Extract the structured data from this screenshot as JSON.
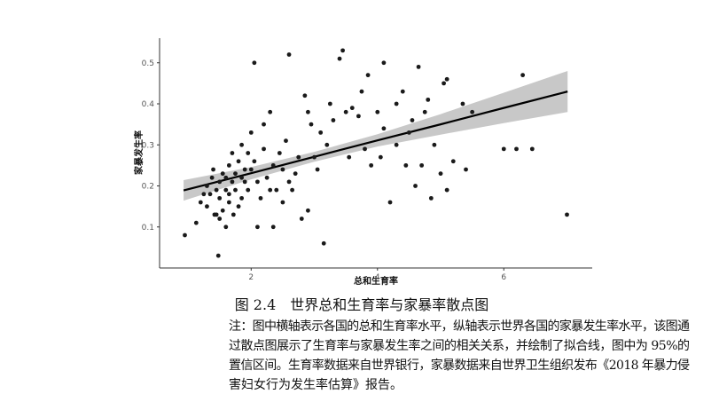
{
  "chart_data": {
    "type": "scatter",
    "xlabel": "总和生育率",
    "ylabel": "家暴发生率",
    "xlim": [
      0.55,
      7.4
    ],
    "ylim": [
      0,
      0.56
    ],
    "xticks": [
      2,
      4,
      6
    ],
    "yticks": [
      0.1,
      0.2,
      0.3,
      0.4,
      0.5
    ],
    "color": "#1a1a1a",
    "x": [
      0.95,
      1.13,
      1.2,
      1.25,
      1.3,
      1.3,
      1.35,
      1.38,
      1.4,
      1.42,
      1.45,
      1.45,
      1.5,
      1.5,
      1.5,
      1.55,
      1.55,
      1.48,
      1.6,
      1.6,
      1.6,
      1.65,
      1.65,
      1.65,
      1.7,
      1.7,
      1.72,
      1.75,
      1.75,
      1.8,
      1.8,
      1.85,
      1.85,
      1.85,
      1.9,
      1.9,
      1.95,
      1.95,
      2.0,
      2.0,
      2.05,
      2.05,
      2.1,
      2.15,
      2.1,
      2.2,
      2.2,
      2.25,
      2.3,
      2.3,
      2.35,
      2.35,
      2.4,
      2.45,
      2.5,
      2.5,
      2.55,
      2.6,
      2.6,
      2.65,
      2.7,
      2.75,
      2.8,
      2.85,
      2.9,
      2.9,
      2.95,
      3.0,
      3.05,
      3.1,
      3.15,
      3.2,
      3.25,
      3.3,
      3.4,
      3.45,
      3.5,
      3.55,
      3.6,
      3.7,
      3.75,
      3.8,
      3.85,
      3.9,
      4.0,
      4.05,
      4.1,
      4.1,
      4.2,
      4.3,
      4.3,
      4.4,
      4.45,
      4.5,
      4.55,
      4.6,
      4.65,
      4.7,
      4.75,
      4.8,
      4.85,
      4.9,
      5.0,
      5.05,
      5.1,
      5.1,
      5.2,
      5.35,
      5.4,
      5.5,
      6.0,
      6.2,
      6.3,
      6.45,
      7.0
    ],
    "values": [
      0.08,
      0.11,
      0.16,
      0.18,
      0.15,
      0.2,
      0.18,
      0.22,
      0.24,
      0.13,
      0.19,
      0.13,
      0.21,
      0.17,
      0.12,
      0.23,
      0.14,
      0.03,
      0.19,
      0.22,
      0.1,
      0.25,
      0.16,
      0.18,
      0.21,
      0.28,
      0.13,
      0.23,
      0.19,
      0.26,
      0.15,
      0.3,
      0.22,
      0.17,
      0.21,
      0.24,
      0.28,
      0.19,
      0.33,
      0.24,
      0.5,
      0.26,
      0.21,
      0.17,
      0.1,
      0.29,
      0.35,
      0.22,
      0.38,
      0.19,
      0.25,
      0.1,
      0.19,
      0.28,
      0.24,
      0.16,
      0.31,
      0.52,
      0.21,
      0.19,
      0.23,
      0.27,
      0.12,
      0.42,
      0.14,
      0.38,
      0.35,
      0.27,
      0.24,
      0.33,
      0.06,
      0.3,
      0.4,
      0.36,
      0.51,
      0.53,
      0.38,
      0.27,
      0.39,
      0.37,
      0.43,
      0.29,
      0.47,
      0.25,
      0.38,
      0.27,
      0.5,
      0.34,
      0.16,
      0.4,
      0.3,
      0.43,
      0.25,
      0.33,
      0.36,
      0.2,
      0.49,
      0.25,
      0.38,
      0.41,
      0.17,
      0.3,
      0.23,
      0.45,
      0.46,
      0.19,
      0.26,
      0.4,
      0.24,
      0.38,
      0.29,
      0.29,
      0.47,
      0.29,
      0.13
    ],
    "fit": {
      "color": "#000000",
      "band_color": "#c8c8c8",
      "x": [
        0.93,
        2,
        3,
        4,
        5,
        6,
        7.01
      ],
      "y": [
        0.189,
        0.231,
        0.271,
        0.311,
        0.35,
        0.39,
        0.43
      ],
      "lower": [
        0.164,
        0.216,
        0.259,
        0.296,
        0.325,
        0.353,
        0.38
      ],
      "upper": [
        0.214,
        0.246,
        0.283,
        0.326,
        0.375,
        0.427,
        0.48
      ]
    }
  },
  "caption": "图 2.4　世界总和生育率与家暴率散点图",
  "note": [
    "注：图中横轴表示各国的总和生育率水平，纵轴表示世界各国的家暴发生率水平，该图通",
    "过散点图展示了生育率与家暴发生率之间的相关关系，并绘制了拟合线，图中为 95%的",
    "置信区间。生育率数据来自世界银行，家暴数据来自世界卫生组织发布《2018 年暴力侵",
    "害妇女行为发生率估算》报告。"
  ]
}
